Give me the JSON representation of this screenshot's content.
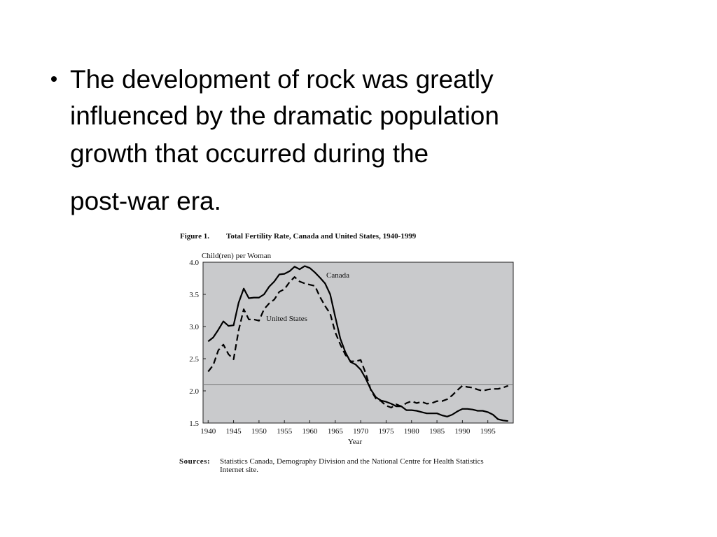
{
  "bullet": {
    "lines": [
      "The development of rock was greatly",
      "influenced by the dramatic population",
      "growth that occurred during the",
      "post-war era."
    ]
  },
  "chart_data": {
    "type": "line",
    "figure_label": "Figure 1.",
    "title": "Total Fertility Rate, Canada and United States, 1940-1999",
    "y_label": "Child(ren) per Woman",
    "x_label": "Year",
    "sources_label": "Sources:",
    "sources": [
      "Statistics Canada, Demography Division and the National Centre for Health Statistics",
      "Internet site."
    ],
    "x": [
      1940,
      1941,
      1942,
      1943,
      1944,
      1945,
      1946,
      1947,
      1948,
      1949,
      1950,
      1951,
      1952,
      1953,
      1954,
      1955,
      1956,
      1957,
      1958,
      1959,
      1960,
      1961,
      1962,
      1963,
      1964,
      1965,
      1966,
      1967,
      1968,
      1969,
      1970,
      1971,
      1972,
      1973,
      1974,
      1975,
      1976,
      1977,
      1978,
      1979,
      1980,
      1981,
      1982,
      1983,
      1984,
      1985,
      1986,
      1987,
      1988,
      1989,
      1990,
      1991,
      1992,
      1993,
      1994,
      1995,
      1996,
      1997,
      1998,
      1999
    ],
    "series": [
      {
        "name": "Canada",
        "color": "#000000",
        "dash": false,
        "values": [
          2.77,
          2.83,
          2.95,
          3.08,
          3.01,
          3.02,
          3.37,
          3.59,
          3.44,
          3.45,
          3.45,
          3.5,
          3.62,
          3.7,
          3.81,
          3.82,
          3.86,
          3.93,
          3.89,
          3.94,
          3.91,
          3.84,
          3.76,
          3.67,
          3.5,
          3.15,
          2.81,
          2.6,
          2.45,
          2.41,
          2.33,
          2.19,
          2.02,
          1.9,
          1.85,
          1.83,
          1.8,
          1.76,
          1.76,
          1.7,
          1.7,
          1.69,
          1.67,
          1.65,
          1.65,
          1.65,
          1.62,
          1.6,
          1.63,
          1.68,
          1.72,
          1.72,
          1.71,
          1.69,
          1.69,
          1.67,
          1.63,
          1.56,
          1.54,
          1.53
        ]
      },
      {
        "name": "United States",
        "color": "#000000",
        "dash": true,
        "values": [
          2.3,
          2.4,
          2.63,
          2.72,
          2.57,
          2.49,
          2.94,
          3.27,
          3.11,
          3.11,
          3.09,
          3.27,
          3.36,
          3.42,
          3.54,
          3.58,
          3.69,
          3.77,
          3.7,
          3.67,
          3.65,
          3.63,
          3.46,
          3.32,
          3.2,
          2.91,
          2.72,
          2.56,
          2.46,
          2.46,
          2.48,
          2.27,
          2.01,
          1.88,
          1.84,
          1.77,
          1.74,
          1.79,
          1.76,
          1.81,
          1.84,
          1.81,
          1.83,
          1.8,
          1.81,
          1.84,
          1.84,
          1.87,
          1.93,
          2.01,
          2.08,
          2.06,
          2.05,
          2.02,
          2.0,
          2.02,
          2.03,
          2.03,
          2.05,
          2.08
        ]
      }
    ],
    "xlim": [
      1939,
      2000
    ],
    "xticks": [
      1940,
      1945,
      1950,
      1955,
      1960,
      1965,
      1970,
      1975,
      1980,
      1985,
      1990,
      1995
    ],
    "ylim": [
      1.5,
      4.0
    ],
    "yticks": [
      1.5,
      {
        "value": 2,
        "label": "2.0"
      },
      2.5,
      {
        "value": 3,
        "label": "3.0"
      },
      3.5,
      {
        "value": 4,
        "label": "4.0"
      }
    ],
    "reference_line": 2.1,
    "background": "#c9cacc"
  }
}
